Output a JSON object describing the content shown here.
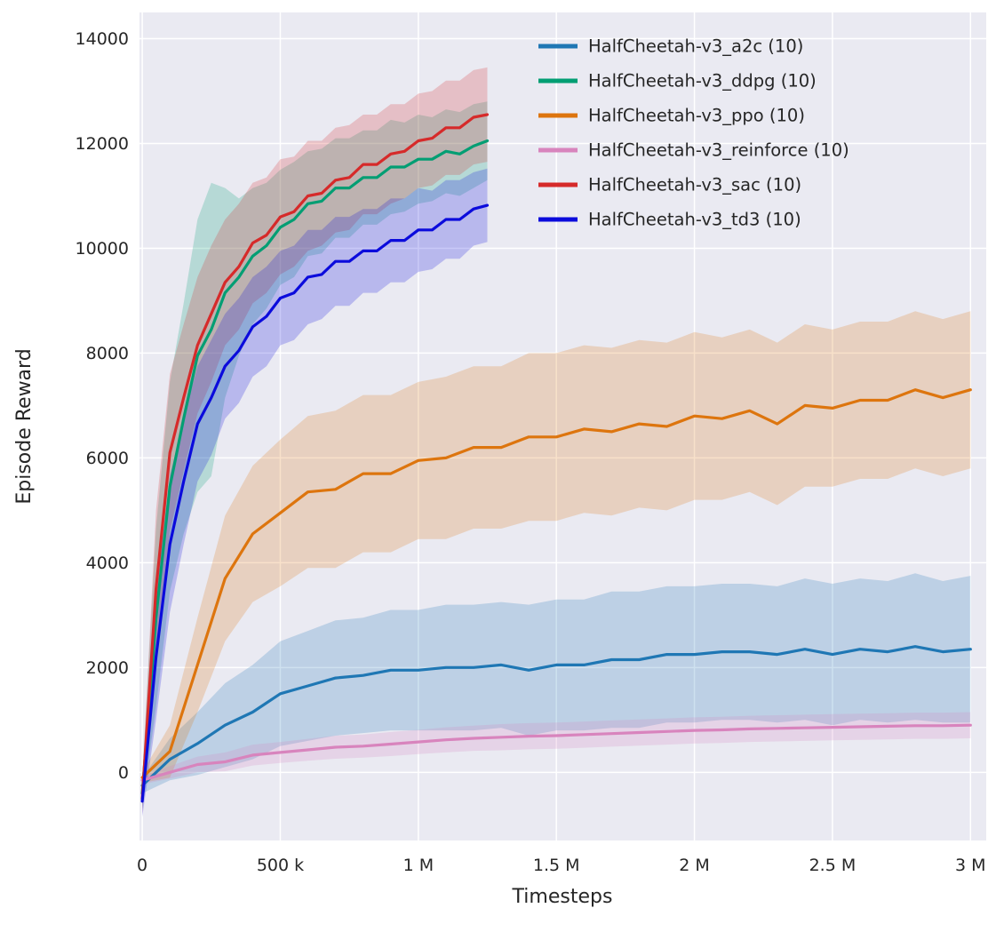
{
  "figure": {
    "xlabel": "Timesteps",
    "ylabel": "Episode Reward"
  },
  "chart_data": {
    "type": "line",
    "title": "",
    "xlabel": "Timesteps",
    "ylabel": "Episode Reward",
    "grid": true,
    "legend_position": "upper right (inside plot)",
    "plot_bg": "#eaeaf2",
    "grid_color": "#ffffff",
    "text_color": "#262626",
    "xlim": [
      -10,
      3057
    ],
    "ylim": [
      -1300,
      14500
    ],
    "x_units": "thousands of timesteps",
    "x_ticks": [
      {
        "v": 0,
        "label": "0"
      },
      {
        "v": 500,
        "label": "500 k"
      },
      {
        "v": 1000,
        "label": "1 M"
      },
      {
        "v": 1500,
        "label": "1.5 M"
      },
      {
        "v": 2000,
        "label": "2 M"
      },
      {
        "v": 2500,
        "label": "2.5 M"
      },
      {
        "v": 3000,
        "label": "3 M"
      }
    ],
    "y_ticks": [
      {
        "v": 0,
        "label": "0"
      },
      {
        "v": 2000,
        "label": "2000"
      },
      {
        "v": 4000,
        "label": "4000"
      },
      {
        "v": 6000,
        "label": "6000"
      },
      {
        "v": 8000,
        "label": "8000"
      },
      {
        "v": 10000,
        "label": "10000"
      },
      {
        "v": 12000,
        "label": "12000"
      },
      {
        "v": 14000,
        "label": "14000"
      }
    ],
    "x_short": [
      0,
      50,
      100,
      150,
      200,
      250,
      300,
      350,
      400,
      450,
      500,
      550,
      600,
      650,
      700,
      750,
      800,
      850,
      900,
      950,
      1000,
      1050,
      1100,
      1150,
      1200,
      1250
    ],
    "x_long": [
      0,
      100,
      200,
      300,
      400,
      500,
      600,
      700,
      800,
      900,
      1000,
      1100,
      1200,
      1300,
      1400,
      1500,
      1600,
      1700,
      1800,
      1900,
      2000,
      2100,
      2200,
      2300,
      2400,
      2500,
      2600,
      2700,
      2800,
      2900,
      3000
    ],
    "series": [
      {
        "name": "HalfCheetah-v3_a2c (10)",
        "id": "a2c",
        "color": "#1f77b4",
        "xs": "x_long",
        "mean": [
          -250,
          250,
          550,
          900,
          1150,
          1500,
          1650,
          1800,
          1850,
          1950,
          1950,
          2000,
          2000,
          2050,
          1950,
          2050,
          2050,
          2150,
          2150,
          2250,
          2250,
          2300,
          2300,
          2250,
          2350,
          2250,
          2350,
          2300,
          2400,
          2300,
          2350
        ],
        "spread": [
          150,
          400,
          600,
          800,
          900,
          1000,
          1050,
          1100,
          1100,
          1150,
          1150,
          1200,
          1200,
          1200,
          1250,
          1250,
          1250,
          1300,
          1300,
          1300,
          1300,
          1300,
          1300,
          1300,
          1350,
          1350,
          1350,
          1350,
          1400,
          1350,
          1400
        ]
      },
      {
        "name": "HalfCheetah-v3_ddpg (10)",
        "id": "ddpg",
        "color": "#029e73",
        "xs": "x_short",
        "mean": [
          -400,
          2950,
          5450,
          6750,
          7950,
          8450,
          9150,
          9450,
          9850,
          10050,
          10400,
          10550,
          10850,
          10900,
          11150,
          11150,
          11350,
          11350,
          11550,
          11550,
          11700,
          11700,
          11850,
          11800,
          11950,
          12050
        ],
        "spread": [
          300,
          1700,
          2000,
          2200,
          2600,
          2800,
          2000,
          1500,
          1300,
          1200,
          1100,
          1100,
          1000,
          1000,
          950,
          950,
          900,
          900,
          900,
          850,
          850,
          800,
          800,
          800,
          800,
          750
        ]
      },
      {
        "name": "HalfCheetah-v3_ppo (10)",
        "id": "ppo",
        "color": "#dd750e",
        "xs": "x_long",
        "mean": [
          -100,
          400,
          2050,
          3700,
          4550,
          4950,
          5350,
          5400,
          5700,
          5700,
          5950,
          6000,
          6200,
          6200,
          6400,
          6400,
          6550,
          6500,
          6650,
          6600,
          6800,
          6750,
          6900,
          6650,
          7000,
          6950,
          7100,
          7100,
          7300,
          7150,
          7300
        ],
        "spread": [
          100,
          500,
          900,
          1200,
          1300,
          1400,
          1450,
          1500,
          1500,
          1500,
          1500,
          1550,
          1550,
          1550,
          1600,
          1600,
          1600,
          1600,
          1600,
          1600,
          1600,
          1550,
          1550,
          1550,
          1550,
          1500,
          1500,
          1500,
          1500,
          1500,
          1500
        ]
      },
      {
        "name": "HalfCheetah-v3_reinforce (10)",
        "id": "reinforce",
        "color": "#d884bd",
        "xs": "x_long",
        "mean": [
          -150,
          0,
          150,
          200,
          330,
          380,
          430,
          480,
          500,
          540,
          580,
          620,
          650,
          670,
          690,
          700,
          720,
          740,
          760,
          780,
          800,
          810,
          830,
          840,
          850,
          860,
          870,
          880,
          890,
          890,
          900
        ],
        "spread": [
          80,
          120,
          150,
          180,
          200,
          200,
          210,
          220,
          220,
          230,
          230,
          240,
          240,
          250,
          250,
          250,
          250,
          250,
          250,
          250,
          250,
          250,
          250,
          250,
          250,
          250,
          250,
          250,
          250,
          250,
          250
        ]
      },
      {
        "name": "HalfCheetah-v3_sac (10)",
        "id": "sac",
        "color": "#d62a2a",
        "xs": "x_short",
        "mean": [
          -500,
          3500,
          6100,
          7150,
          8150,
          8750,
          9350,
          9650,
          10100,
          10250,
          10600,
          10700,
          11000,
          11050,
          11300,
          11350,
          11600,
          11600,
          11800,
          11850,
          12050,
          12100,
          12300,
          12300,
          12500,
          12550
        ],
        "spread": [
          300,
          1500,
          1500,
          1400,
          1300,
          1300,
          1200,
          1200,
          1150,
          1100,
          1100,
          1050,
          1050,
          1000,
          1000,
          1000,
          950,
          950,
          950,
          900,
          900,
          900,
          900,
          900,
          900,
          900
        ]
      },
      {
        "name": "HalfCheetah-v3_td3 (10)",
        "id": "td3",
        "color": "#0b0bdc",
        "xs": "x_short",
        "mean": [
          -550,
          2200,
          4350,
          5550,
          6650,
          7150,
          7750,
          8050,
          8500,
          8700,
          9050,
          9150,
          9450,
          9500,
          9750,
          9750,
          9950,
          9950,
          10150,
          10150,
          10350,
          10350,
          10550,
          10550,
          10750,
          10820
        ],
        "spread": [
          300,
          1200,
          1300,
          1200,
          1100,
          1100,
          1000,
          1000,
          950,
          950,
          900,
          900,
          900,
          850,
          850,
          850,
          800,
          800,
          800,
          800,
          800,
          750,
          750,
          750,
          700,
          700
        ]
      }
    ]
  }
}
